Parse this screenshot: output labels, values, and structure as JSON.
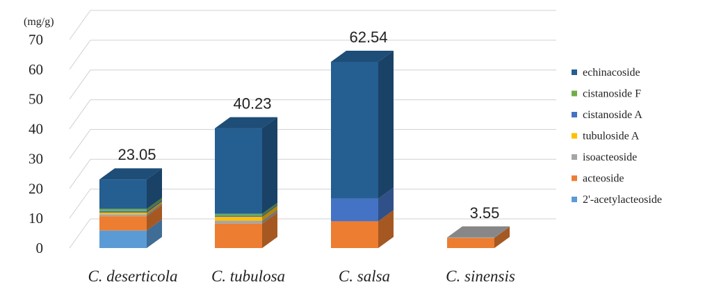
{
  "chart_data": {
    "type": "bar",
    "stacked": true,
    "three_d": true,
    "ylabel": "(mg/g)",
    "ylim": [
      0,
      70
    ],
    "yticks": [
      0,
      10,
      20,
      30,
      40,
      50,
      60,
      70
    ],
    "grid": true,
    "legend_position": "right",
    "categories": [
      "C. deserticola",
      "C. tubulosa",
      "C. salsa",
      "C. sinensis"
    ],
    "totals": [
      "23.05",
      "40.23",
      "62.54",
      "3.55"
    ],
    "series": [
      {
        "name": "2'-acetylacteoside",
        "color": "#5b9bd5",
        "values": [
          5.9,
          0.0,
          0.0,
          0.0
        ]
      },
      {
        "name": "acteoside",
        "color": "#ed7d31",
        "values": [
          4.8,
          8.2,
          9.0,
          3.4
        ]
      },
      {
        "name": "isoacteoside",
        "color": "#a5a5a5",
        "values": [
          0.6,
          1.0,
          0.0,
          0.15
        ]
      },
      {
        "name": "tubuloside A",
        "color": "#ffc000",
        "values": [
          0.6,
          1.3,
          0.0,
          0.0
        ]
      },
      {
        "name": "cistanoside A",
        "color": "#4472c4",
        "values": [
          0.5,
          0.4,
          7.6,
          0.0
        ]
      },
      {
        "name": "cistanoside F",
        "color": "#70ad47",
        "values": [
          0.75,
          0.6,
          0.0,
          0.0
        ]
      },
      {
        "name": "echinacoside",
        "color": "#255e91",
        "values": [
          9.9,
          28.73,
          45.94,
          0.0
        ]
      }
    ],
    "legend_order": [
      "echinacoside",
      "cistanoside F",
      "cistanoside A",
      "tubuloside A",
      "isoacteoside",
      "acteoside",
      "2'-acetylacteoside"
    ]
  }
}
